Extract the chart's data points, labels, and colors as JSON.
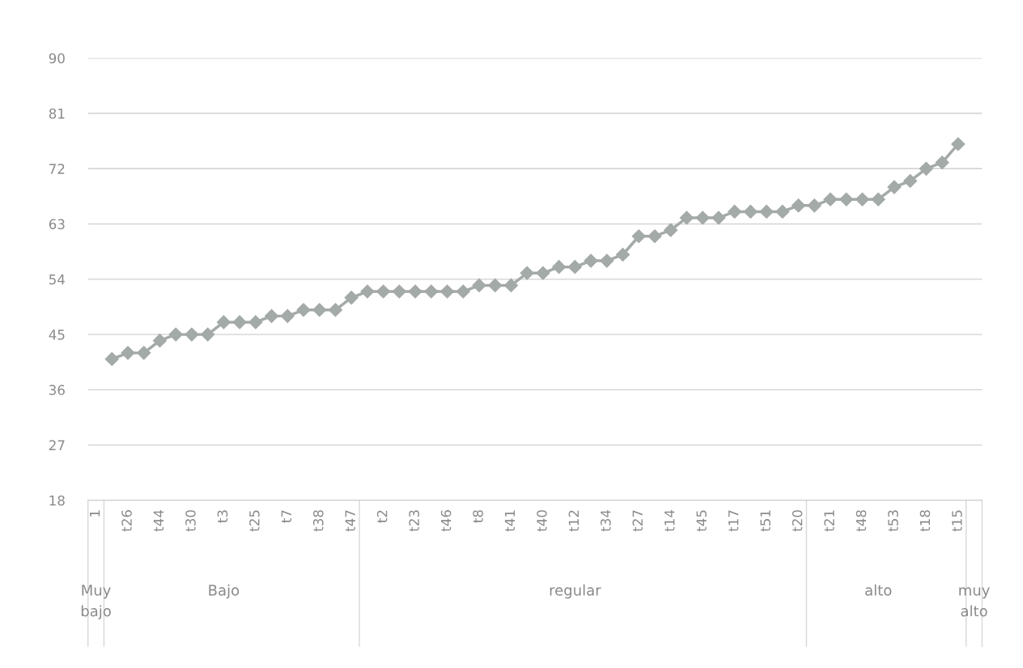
{
  "chart_data": {
    "type": "line",
    "categories": [
      "1",
      null,
      "t26",
      null,
      "t44",
      null,
      "t30",
      null,
      "t3",
      null,
      "t25",
      null,
      "t7",
      null,
      "t38",
      null,
      "t47",
      null,
      "t2",
      null,
      "t23",
      null,
      "t46",
      null,
      "t8",
      null,
      "t41",
      null,
      "t40",
      null,
      "t12",
      null,
      "t34",
      null,
      "t27",
      null,
      "t14",
      null,
      "t45",
      null,
      "t17",
      null,
      "t51",
      null,
      "t20",
      null,
      "t21",
      null,
      "t48",
      null,
      "t53",
      null,
      "t18",
      null,
      "t15",
      null
    ],
    "series": [
      {
        "color": "#a3aaa8",
        "values": [
          null,
          41,
          42,
          42,
          44,
          45,
          45,
          45,
          47,
          47,
          47,
          48,
          48,
          49,
          49,
          49,
          51,
          52,
          52,
          52,
          52,
          52,
          52,
          52,
          53,
          53,
          53,
          55,
          55,
          56,
          56,
          57,
          57,
          58,
          61,
          61,
          62,
          64,
          64,
          64,
          65,
          65,
          65,
          65,
          66,
          66,
          67,
          67,
          67,
          67,
          69,
          70,
          72,
          73,
          76,
          null
        ]
      }
    ],
    "ylim": [
      18,
      90
    ],
    "yticks": [
      18,
      27,
      36,
      45,
      54,
      63,
      72,
      81,
      90
    ],
    "grid": "y",
    "marker": "diamond",
    "line_style": "solid",
    "annotations": [
      "Muy\nbajo",
      "Bajo",
      "regular",
      "alto",
      "muy\nalto"
    ]
  }
}
